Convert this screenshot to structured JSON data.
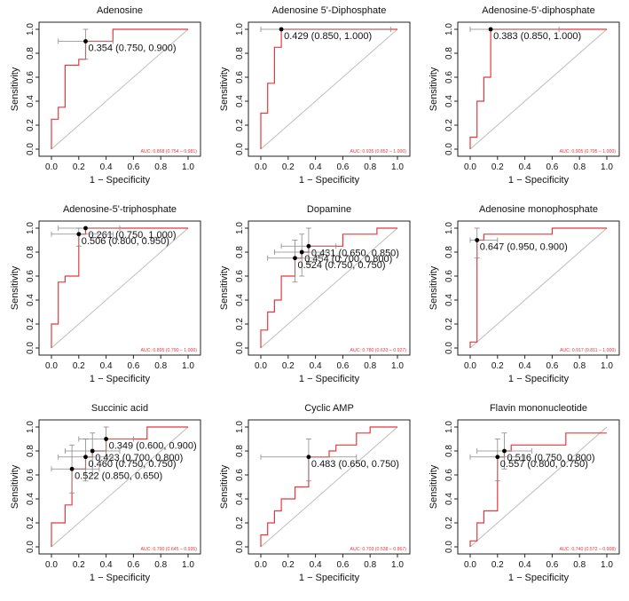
{
  "figure": {
    "x_axis_label": "1 − Specificity",
    "y_axis_label": "Sensitivity"
  },
  "colors": {
    "roc_line": "#e8383d",
    "auc_text": "#e8383d",
    "axis": "#222222",
    "marker": "#000000",
    "error_bar": "#888888",
    "diagonal": "#bdbdbd"
  },
  "chart_data": [
    {
      "type": "line",
      "title": "Adenosine",
      "xlabel": "1 − Specificity",
      "ylabel": "Sensitivity",
      "xlim": [
        0,
        1
      ],
      "ylim": [
        0,
        1
      ],
      "xticks": [
        "0.0",
        "0.2",
        "0.4",
        "0.6",
        "0.8",
        "1.0"
      ],
      "yticks": [
        "0.0",
        "0.2",
        "0.4",
        "0.6",
        "0.8",
        "1.0"
      ],
      "roc_x": [
        0,
        0,
        0.05,
        0.05,
        0.1,
        0.1,
        0.2,
        0.2,
        0.25,
        0.25,
        0.45,
        0.45,
        1.0
      ],
      "roc_y": [
        0,
        0.25,
        0.25,
        0.35,
        0.35,
        0.7,
        0.7,
        0.75,
        0.75,
        0.9,
        0.9,
        1.0,
        1.0
      ],
      "points": [
        {
          "label": "0.354 (0.750, 0.900)",
          "x": 0.25,
          "y": 0.9,
          "x_err": [
            0.05,
            0.45
          ],
          "y_err": [
            0.75,
            1.0
          ]
        }
      ],
      "auc": "AUC: 0.868 (0.754 – 0.981)"
    },
    {
      "type": "line",
      "title": "Adenosine 5'-Diphosphate",
      "xlabel": "1 − Specificity",
      "ylabel": "Sensitivity",
      "xlim": [
        0,
        1
      ],
      "ylim": [
        0,
        1
      ],
      "xticks": [
        "0.0",
        "0.2",
        "0.4",
        "0.6",
        "0.8",
        "1.0"
      ],
      "yticks": [
        "0.0",
        "0.2",
        "0.4",
        "0.6",
        "0.8",
        "1.0"
      ],
      "roc_x": [
        0,
        0,
        0.05,
        0.05,
        0.1,
        0.1,
        0.15,
        0.15,
        1.0
      ],
      "roc_y": [
        0,
        0.3,
        0.3,
        0.55,
        0.55,
        0.85,
        0.85,
        1.0,
        1.0
      ],
      "points": [
        {
          "label": "0.429 (0.850, 1.000)",
          "x": 0.15,
          "y": 1.0,
          "x_err": [
            0.0,
            0.95
          ],
          "y_err": [
            1.0,
            1.0
          ]
        }
      ],
      "auc": "AUC: 0.935 (0.852 – 1.000)"
    },
    {
      "type": "line",
      "title": "Adenosine-5'-diphosphate",
      "xlabel": "1 − Specificity",
      "ylabel": "Sensitivity",
      "xlim": [
        0,
        1
      ],
      "ylim": [
        0,
        1
      ],
      "xticks": [
        "0.0",
        "0.2",
        "0.4",
        "0.6",
        "0.8",
        "1.0"
      ],
      "yticks": [
        "0.0",
        "0.2",
        "0.4",
        "0.6",
        "0.8",
        "1.0"
      ],
      "roc_x": [
        0,
        0,
        0.05,
        0.05,
        0.1,
        0.1,
        0.15,
        0.15,
        1.0
      ],
      "roc_y": [
        0,
        0.1,
        0.1,
        0.4,
        0.4,
        0.6,
        0.6,
        1.0,
        1.0
      ],
      "points": [
        {
          "label": "0.383 (0.850, 1.000)",
          "x": 0.15,
          "y": 1.0,
          "x_err": [
            0.0,
            0.65
          ],
          "y_err": [
            1.0,
            1.0
          ]
        }
      ],
      "auc": "AUC: 0.905 (0.795 – 1.000)"
    },
    {
      "type": "line",
      "title": "Adenosine-5'-triphosphate",
      "xlabel": "1 − Specificity",
      "ylabel": "Sensitivity",
      "xlim": [
        0,
        1
      ],
      "ylim": [
        0,
        1
      ],
      "xticks": [
        "0.0",
        "0.2",
        "0.4",
        "0.6",
        "0.8",
        "1.0"
      ],
      "yticks": [
        "0.0",
        "0.2",
        "0.4",
        "0.6",
        "0.8",
        "1.0"
      ],
      "roc_x": [
        0,
        0,
        0.05,
        0.05,
        0.1,
        0.1,
        0.2,
        0.2,
        0.25,
        0.25,
        1.0
      ],
      "roc_y": [
        0,
        0.2,
        0.2,
        0.55,
        0.55,
        0.6,
        0.6,
        0.95,
        0.95,
        1.0,
        1.0
      ],
      "points": [
        {
          "label": "0.261 (0.750, 1.000)",
          "x": 0.25,
          "y": 1.0,
          "x_err": [
            0.05,
            0.5
          ],
          "y_err": [
            1.0,
            1.0
          ]
        },
        {
          "label": "0.506 (0.800, 0.950)",
          "x": 0.2,
          "y": 0.95,
          "x_err": [
            0.0,
            0.45
          ],
          "y_err": [
            0.85,
            1.0
          ]
        }
      ],
      "auc": "AUC: 0.895 (0.790 – 1.000)"
    },
    {
      "type": "line",
      "title": "Dopamine",
      "xlabel": "1 − Specificity",
      "ylabel": "Sensitivity",
      "xlim": [
        0,
        1
      ],
      "ylim": [
        0,
        1
      ],
      "xticks": [
        "0.0",
        "0.2",
        "0.4",
        "0.6",
        "0.8",
        "1.0"
      ],
      "yticks": [
        "0.0",
        "0.2",
        "0.4",
        "0.6",
        "0.8",
        "1.0"
      ],
      "roc_x": [
        0,
        0,
        0.05,
        0.05,
        0.1,
        0.1,
        0.15,
        0.15,
        0.25,
        0.25,
        0.3,
        0.3,
        0.35,
        0.35,
        0.6,
        0.6,
        0.85,
        0.85,
        1.0
      ],
      "roc_y": [
        0,
        0.15,
        0.15,
        0.3,
        0.3,
        0.4,
        0.4,
        0.6,
        0.6,
        0.75,
        0.75,
        0.8,
        0.8,
        0.85,
        0.85,
        0.95,
        0.95,
        1.0,
        1.0
      ],
      "points": [
        {
          "label": "0.431 (0.650, 0.850)",
          "x": 0.35,
          "y": 0.85,
          "x_err": [
            0.15,
            0.55
          ],
          "y_err": [
            0.7,
            1.0
          ]
        },
        {
          "label": "0.454 (0.700, 0.800)",
          "x": 0.3,
          "y": 0.8,
          "x_err": [
            0.1,
            0.5
          ],
          "y_err": [
            0.6,
            0.95
          ]
        },
        {
          "label": "0.524 (0.750, 0.750)",
          "x": 0.25,
          "y": 0.75,
          "x_err": [
            0.05,
            0.45
          ],
          "y_err": [
            0.55,
            0.9
          ]
        }
      ],
      "auc": "AUC: 0.780 (0.633 – 0.927)"
    },
    {
      "type": "line",
      "title": "Adenosine monophosphate",
      "xlabel": "1 − Specificity",
      "ylabel": "Sensitivity",
      "xlim": [
        0,
        1
      ],
      "ylim": [
        0,
        1
      ],
      "xticks": [
        "0.0",
        "0.2",
        "0.4",
        "0.6",
        "0.8",
        "1.0"
      ],
      "yticks": [
        "0.0",
        "0.2",
        "0.4",
        "0.6",
        "0.8",
        "1.0"
      ],
      "roc_x": [
        0,
        0,
        0.05,
        0.05,
        0.1,
        0.1,
        0.6,
        0.6,
        1.0
      ],
      "roc_y": [
        0,
        0.05,
        0.05,
        0.9,
        0.9,
        0.95,
        0.95,
        1.0,
        1.0
      ],
      "points": [
        {
          "label": "0.647 (0.950, 0.900)",
          "x": 0.05,
          "y": 0.9,
          "x_err": [
            0.0,
            0.2
          ],
          "y_err": [
            0.75,
            1.0
          ]
        }
      ],
      "auc": "AUC: 0.917 (0.811 – 1.000)"
    },
    {
      "type": "line",
      "title": "Succinic acid",
      "xlabel": "1 − Specificity",
      "ylabel": "Sensitivity",
      "xlim": [
        0,
        1
      ],
      "ylim": [
        0,
        1
      ],
      "xticks": [
        "0.0",
        "0.2",
        "0.4",
        "0.6",
        "0.8",
        "1.0"
      ],
      "yticks": [
        "0.0",
        "0.2",
        "0.4",
        "0.6",
        "0.8",
        "1.0"
      ],
      "roc_x": [
        0,
        0,
        0.1,
        0.1,
        0.15,
        0.15,
        0.25,
        0.25,
        0.3,
        0.3,
        0.4,
        0.4,
        0.7,
        0.7,
        1.0
      ],
      "roc_y": [
        0,
        0.2,
        0.2,
        0.35,
        0.35,
        0.65,
        0.65,
        0.75,
        0.75,
        0.8,
        0.8,
        0.9,
        0.9,
        1.0,
        1.0
      ],
      "points": [
        {
          "label": "0.349 (0.600, 0.900)",
          "x": 0.4,
          "y": 0.9,
          "x_err": [
            0.2,
            0.6
          ],
          "y_err": [
            0.75,
            1.0
          ]
        },
        {
          "label": "0.423 (0.700, 0.800)",
          "x": 0.3,
          "y": 0.8,
          "x_err": [
            0.1,
            0.5
          ],
          "y_err": [
            0.6,
            0.95
          ]
        },
        {
          "label": "0.460 (0.750, 0.750)",
          "x": 0.25,
          "y": 0.75,
          "x_err": [
            0.05,
            0.45
          ],
          "y_err": [
            0.55,
            0.9
          ]
        },
        {
          "label": "0.522 (0.850, 0.650)",
          "x": 0.15,
          "y": 0.65,
          "x_err": [
            0.0,
            0.35
          ],
          "y_err": [
            0.45,
            0.85
          ]
        }
      ],
      "auc": "AUC: 0.790 (0.645 – 0.935)"
    },
    {
      "type": "line",
      "title": "Cyclic AMP",
      "xlabel": "1 − Specificity",
      "ylabel": "Sensitivity",
      "xlim": [
        0,
        1
      ],
      "ylim": [
        0,
        1
      ],
      "xticks": [
        "0.0",
        "0.2",
        "0.4",
        "0.6",
        "0.8",
        "1.0"
      ],
      "yticks": [
        "0.0",
        "0.2",
        "0.4",
        "0.6",
        "0.8",
        "1.0"
      ],
      "roc_x": [
        0,
        0,
        0.05,
        0.05,
        0.1,
        0.1,
        0.15,
        0.15,
        0.25,
        0.25,
        0.35,
        0.35,
        0.5,
        0.5,
        0.55,
        0.55,
        0.7,
        0.7,
        0.8,
        0.8,
        1.0
      ],
      "roc_y": [
        0,
        0.1,
        0.1,
        0.2,
        0.2,
        0.3,
        0.3,
        0.4,
        0.4,
        0.5,
        0.5,
        0.75,
        0.75,
        0.8,
        0.8,
        0.85,
        0.85,
        0.95,
        0.95,
        1.0,
        1.0
      ],
      "points": [
        {
          "label": "0.483 (0.650, 0.750)",
          "x": 0.35,
          "y": 0.75,
          "x_err": [
            0.0,
            0.7
          ],
          "y_err": [
            0.55,
            0.9
          ]
        }
      ],
      "auc": "AUC: 0.703 (0.538 – 0.867)"
    },
    {
      "type": "line",
      "title": "Flavin mononucleotide",
      "xlabel": "1 − Specificity",
      "ylabel": "Sensitivity",
      "xlim": [
        0,
        1
      ],
      "ylim": [
        0,
        1
      ],
      "xticks": [
        "0.0",
        "0.2",
        "0.4",
        "0.6",
        "0.8",
        "1.0"
      ],
      "yticks": [
        "0.0",
        "0.2",
        "0.4",
        "0.6",
        "0.8",
        "1.0"
      ],
      "roc_x": [
        0,
        0,
        0.05,
        0.05,
        0.1,
        0.1,
        0.2,
        0.2,
        0.25,
        0.25,
        0.3,
        0.3,
        0.7,
        0.7,
        1.0
      ],
      "roc_y": [
        0,
        0.05,
        0.05,
        0.2,
        0.2,
        0.3,
        0.3,
        0.75,
        0.75,
        0.8,
        0.8,
        0.85,
        0.85,
        0.95,
        0.95
      ],
      "points": [
        {
          "label": "0.516 (0.750, 0.800)",
          "x": 0.25,
          "y": 0.8,
          "x_err": [
            0.05,
            0.45
          ],
          "y_err": [
            0.65,
            0.95
          ]
        },
        {
          "label": "0.557 (0.800, 0.750)",
          "x": 0.2,
          "y": 0.75,
          "x_err": [
            0.0,
            0.4
          ],
          "y_err": [
            0.55,
            0.9
          ]
        }
      ],
      "auc": "AUC: 0.740 (0.572 – 0.908)"
    }
  ]
}
